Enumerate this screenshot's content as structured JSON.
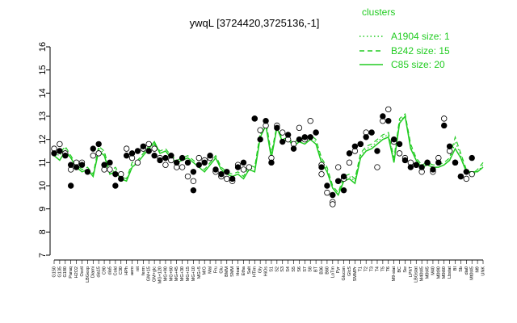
{
  "chart_data": {
    "type": "line",
    "title": "ywqL [3724420,3725136,-1]",
    "xlabel": "",
    "ylabel": "",
    "ylim": [
      7,
      16
    ],
    "y_ticks": [
      7,
      8,
      9,
      10,
      11,
      12,
      13,
      14,
      15,
      16
    ],
    "grid": false,
    "legend": {
      "title": "clusters",
      "position": "top-right",
      "entries": [
        {
          "label": "A1904 size: 1",
          "style": "dotted"
        },
        {
          "label": "B242 size: 15",
          "style": "dashed"
        },
        {
          "label": "C85 size: 20",
          "style": "solid"
        }
      ]
    },
    "line_color": "#22cc22",
    "x_tick_labels": [
      "G150",
      "G135",
      "G180",
      "Paraq",
      "H2O2",
      "Oxctl",
      "LBGexp",
      "Diami",
      "dia15",
      "C90",
      "dia5",
      "Cold",
      "C30",
      "HPh",
      "aero",
      "nit",
      "ferm",
      "GM+15",
      "GM+glc",
      "MG+120",
      "MG+90",
      "MG+60",
      "MG+45",
      "MG+30",
      "MG+15",
      "MG+10",
      "MG+5",
      "M/G",
      "Mal",
      "Fru",
      "Glu",
      "BMM",
      "SMM",
      "Heat",
      "Etha",
      "Salt",
      "HTim",
      "Gly",
      "HiOs",
      "S1",
      "S2",
      "S3",
      "S4",
      "S5",
      "S6",
      "S7",
      "S8",
      "BT",
      "B36",
      "B60",
      "LoTm",
      "Pyr",
      "Glucon",
      "GlcS",
      "SMMPr",
      "T1",
      "T2",
      "T3",
      "T4",
      "T5",
      "T6",
      "M9-stat",
      "BC",
      "Sw",
      "LPhT",
      "LBGstat",
      "M40t45",
      "M0t45",
      "M40",
      "M0t90",
      "M0t60",
      "Lbstat",
      "BI",
      "Sb",
      "dia0",
      "Mt0t45",
      "M9",
      "UNK"
    ],
    "series": [
      {
        "name": "C85",
        "style": "solid",
        "values": [
          11.3,
          11.1,
          11.5,
          11.2,
          10.8,
          10.6,
          10.7,
          10.4,
          11.5,
          11.3,
          10.5,
          10.6,
          10.3,
          10.2,
          10.8,
          11.0,
          11.3,
          11.6,
          11.9,
          11.4,
          11.5,
          11.2,
          11.0,
          11.1,
          11.2,
          11.0,
          10.8,
          10.6,
          10.9,
          11.2,
          10.7,
          10.5,
          10.4,
          10.5,
          10.3,
          10.7,
          10.6,
          12.1,
          12.6,
          11.2,
          12.5,
          11.9,
          12.0,
          11.7,
          11.9,
          11.8,
          12.0,
          11.8,
          11.0,
          10.6,
          9.9,
          9.6,
          10.2,
          10.3,
          10.1,
          11.2,
          11.5,
          11.6,
          11.8,
          12.0,
          12.1,
          11.0,
          12.7,
          13.0,
          11.6,
          11.1,
          10.8,
          10.9,
          10.8,
          10.8,
          10.9,
          11.1,
          11.6,
          11.2,
          10.6,
          10.6,
          10.6,
          10.8
        ]
      },
      {
        "name": "B242",
        "style": "dashed",
        "values": [
          11.5,
          11.4,
          11.7,
          11.3,
          10.9,
          10.7,
          10.8,
          10.5,
          11.7,
          11.5,
          10.6,
          10.8,
          10.4,
          10.3,
          11.0,
          11.1,
          11.4,
          11.7,
          11.8,
          11.5,
          11.6,
          11.3,
          11.1,
          11.2,
          11.3,
          11.1,
          10.9,
          10.7,
          11.0,
          11.3,
          10.8,
          10.6,
          10.5,
          10.6,
          10.4,
          10.9,
          10.8,
          12.3,
          12.8,
          11.4,
          12.6,
          12.0,
          12.1,
          11.8,
          12.1,
          12.0,
          12.2,
          12.0,
          11.2,
          10.8,
          10.0,
          9.7,
          10.4,
          10.5,
          10.3,
          11.4,
          11.7,
          11.8,
          12.0,
          12.2,
          12.3,
          11.2,
          12.9,
          13.1,
          11.8,
          11.2,
          10.9,
          11.0,
          10.9,
          10.9,
          11.0,
          11.2,
          12.1,
          11.4,
          10.7,
          10.5,
          10.7,
          11.0
        ]
      },
      {
        "name": "A1904",
        "style": "dotted",
        "values": [
          11.4,
          11.3,
          11.6,
          11.2,
          10.8,
          10.6,
          10.7,
          10.4,
          11.6,
          11.4,
          10.5,
          10.7,
          10.3,
          10.2,
          10.9,
          11.0,
          11.3,
          11.6,
          11.8,
          11.4,
          11.5,
          11.2,
          11.0,
          11.1,
          11.2,
          11.0,
          10.8,
          10.6,
          10.9,
          11.2,
          10.7,
          10.5,
          10.4,
          10.5,
          10.3,
          10.8,
          10.7,
          12.2,
          12.7,
          11.3,
          12.5,
          11.9,
          12.0,
          11.7,
          12.0,
          11.9,
          12.1,
          11.9,
          11.1,
          10.7,
          9.9,
          9.6,
          10.3,
          10.4,
          10.2,
          11.3,
          11.6,
          11.7,
          11.9,
          12.1,
          12.2,
          11.1,
          12.8,
          13.0,
          11.7,
          11.1,
          10.8,
          10.9,
          10.8,
          10.8,
          10.9,
          11.1,
          11.9,
          11.3,
          10.6,
          10.5,
          10.6,
          10.9
        ]
      }
    ],
    "points_filled": [
      [
        0,
        11.4
      ],
      [
        1,
        11.5
      ],
      [
        2,
        11.3
      ],
      [
        3,
        10.9
      ],
      [
        3,
        10.0
      ],
      [
        4,
        10.8
      ],
      [
        5,
        10.9
      ],
      [
        6,
        10.6
      ],
      [
        7,
        11.6
      ],
      [
        8,
        11.8
      ],
      [
        9,
        10.9
      ],
      [
        10,
        11.0
      ],
      [
        11,
        10.5
      ],
      [
        11,
        10.0
      ],
      [
        12,
        10.3
      ],
      [
        13,
        11.3
      ],
      [
        14,
        11.4
      ],
      [
        15,
        11.5
      ],
      [
        16,
        11.7
      ],
      [
        17,
        11.5
      ],
      [
        18,
        11.3
      ],
      [
        19,
        11.1
      ],
      [
        20,
        11.2
      ],
      [
        21,
        11.3
      ],
      [
        22,
        11.0
      ],
      [
        23,
        11.2
      ],
      [
        24,
        11.0
      ],
      [
        25,
        10.6
      ],
      [
        25,
        9.8
      ],
      [
        26,
        10.9
      ],
      [
        27,
        11.0
      ],
      [
        28,
        11.3
      ],
      [
        29,
        10.7
      ],
      [
        30,
        10.5
      ],
      [
        31,
        10.6
      ],
      [
        32,
        10.3
      ],
      [
        33,
        10.8
      ],
      [
        34,
        11.0
      ],
      [
        36,
        12.9
      ],
      [
        37,
        12.0
      ],
      [
        38,
        12.8
      ],
      [
        39,
        11.0
      ],
      [
        40,
        12.5
      ],
      [
        41,
        11.9
      ],
      [
        42,
        12.2
      ],
      [
        43,
        11.6
      ],
      [
        44,
        12.0
      ],
      [
        45,
        12.1
      ],
      [
        46,
        12.1
      ],
      [
        47,
        12.3
      ],
      [
        48,
        10.8
      ],
      [
        49,
        10.0
      ],
      [
        50,
        9.6
      ],
      [
        51,
        10.2
      ],
      [
        52,
        10.4
      ],
      [
        52,
        9.8
      ],
      [
        53,
        11.4
      ],
      [
        54,
        11.7
      ],
      [
        55,
        11.8
      ],
      [
        56,
        12.1
      ],
      [
        57,
        12.3
      ],
      [
        58,
        11.5
      ],
      [
        59,
        13.0
      ],
      [
        60,
        12.8
      ],
      [
        61,
        12.0
      ],
      [
        62,
        11.8
      ],
      [
        63,
        11.1
      ],
      [
        64,
        10.8
      ],
      [
        65,
        10.9
      ],
      [
        66,
        10.8
      ],
      [
        67,
        11.0
      ],
      [
        68,
        10.7
      ],
      [
        69,
        11.0
      ],
      [
        70,
        12.6
      ],
      [
        71,
        11.7
      ],
      [
        72,
        11.0
      ],
      [
        73,
        10.4
      ],
      [
        74,
        10.6
      ],
      [
        75,
        11.2
      ]
    ],
    "points_open": [
      [
        0,
        11.6
      ],
      [
        1,
        11.8
      ],
      [
        2,
        11.4
      ],
      [
        3,
        10.7
      ],
      [
        4,
        11.0
      ],
      [
        5,
        11.0
      ],
      [
        7,
        11.3
      ],
      [
        8,
        11.4
      ],
      [
        9,
        10.7
      ],
      [
        10,
        10.7
      ],
      [
        12,
        10.5
      ],
      [
        13,
        11.6
      ],
      [
        14,
        11.2
      ],
      [
        15,
        11.0
      ],
      [
        16,
        11.6
      ],
      [
        17,
        11.8
      ],
      [
        18,
        11.6
      ],
      [
        19,
        11.2
      ],
      [
        20,
        10.9
      ],
      [
        21,
        11.1
      ],
      [
        22,
        10.8
      ],
      [
        23,
        10.8
      ],
      [
        24,
        10.4
      ],
      [
        25,
        10.2
      ],
      [
        26,
        11.2
      ],
      [
        27,
        11.1
      ],
      [
        28,
        11.2
      ],
      [
        29,
        10.6
      ],
      [
        30,
        10.4
      ],
      [
        31,
        10.3
      ],
      [
        32,
        10.2
      ],
      [
        33,
        10.9
      ],
      [
        34,
        10.7
      ],
      [
        35,
        10.8
      ],
      [
        36,
        12.9
      ],
      [
        37,
        12.4
      ],
      [
        38,
        12.6
      ],
      [
        39,
        11.2
      ],
      [
        40,
        12.6
      ],
      [
        41,
        12.3
      ],
      [
        42,
        12.0
      ],
      [
        43,
        11.8
      ],
      [
        44,
        12.5
      ],
      [
        45,
        12.0
      ],
      [
        46,
        12.8
      ],
      [
        47,
        12.3
      ],
      [
        48,
        10.9
      ],
      [
        48,
        10.5
      ],
      [
        49,
        9.7
      ],
      [
        50,
        9.3
      ],
      [
        50,
        9.2
      ],
      [
        51,
        10.8
      ],
      [
        51,
        10.2
      ],
      [
        52,
        10.3
      ],
      [
        53,
        11.0
      ],
      [
        54,
        11.5
      ],
      [
        55,
        11.8
      ],
      [
        56,
        12.3
      ],
      [
        57,
        12.3
      ],
      [
        58,
        10.8
      ],
      [
        59,
        12.8
      ],
      [
        60,
        13.3
      ],
      [
        61,
        11.9
      ],
      [
        62,
        11.4
      ],
      [
        63,
        11.2
      ],
      [
        64,
        11.0
      ],
      [
        65,
        10.9
      ],
      [
        66,
        10.6
      ],
      [
        67,
        11.0
      ],
      [
        68,
        10.6
      ],
      [
        69,
        11.2
      ],
      [
        70,
        12.9
      ],
      [
        71,
        11.5
      ],
      [
        72,
        11.0
      ],
      [
        73,
        10.4
      ],
      [
        74,
        10.3
      ],
      [
        75,
        10.5
      ]
    ]
  }
}
